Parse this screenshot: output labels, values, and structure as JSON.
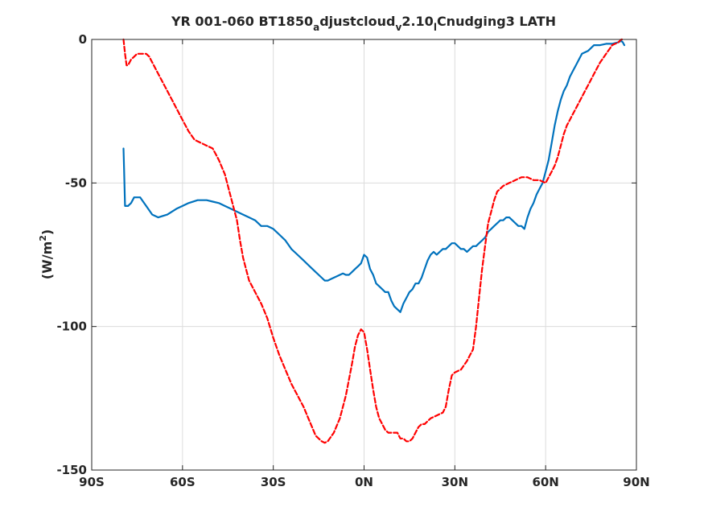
{
  "chart_data": {
    "type": "line",
    "title": {
      "main": "YR 001-060 BT1850",
      "sub1": "a",
      "mid1": "djustcloud",
      "sub2": "v",
      "mid2": "2.10",
      "sub3": "l",
      "tail": "Cnudging3 LATH"
    },
    "xlabel": "",
    "ylabel": {
      "prefix": "(W/m",
      "sup": "2",
      "suffix": ")"
    },
    "xlim": [
      -90,
      90
    ],
    "ylim": [
      -150,
      0
    ],
    "xticks": [
      -90,
      -60,
      -30,
      0,
      30,
      60,
      90
    ],
    "xticklabels": [
      "90S",
      "60S",
      "30S",
      "0N",
      "30N",
      "60N",
      "90N"
    ],
    "yticks": [
      -150,
      -100,
      -50,
      0
    ],
    "yticklabels": [
      "-150",
      "-100",
      "-50",
      "0"
    ],
    "grid": true,
    "series": [
      {
        "color": "#0072BD",
        "style": "solid",
        "x": [
          -79.5,
          -79.3,
          -79,
          -78,
          -77,
          -76,
          -75,
          -74,
          -72,
          -70,
          -68,
          -65,
          -62,
          -60,
          -58,
          -55,
          -52,
          -50,
          -48,
          -46,
          -44,
          -42,
          -40,
          -38,
          -36,
          -34,
          -32,
          -30,
          -28,
          -26,
          -24,
          -22,
          -20,
          -18,
          -16,
          -15,
          -14,
          -13,
          -12,
          -11,
          -10,
          -9,
          -8,
          -7,
          -6,
          -5,
          -4,
          -3,
          -2,
          -1,
          0,
          1,
          2,
          3,
          4,
          5,
          6,
          7,
          8,
          9,
          10,
          11,
          12,
          13,
          14,
          15,
          16,
          17,
          18,
          19,
          20,
          21,
          22,
          23,
          24,
          25,
          26,
          27,
          28,
          29,
          30,
          31,
          32,
          33,
          34,
          35,
          36,
          37,
          38,
          39,
          40,
          41,
          42,
          43,
          44,
          45,
          46,
          47,
          48,
          49,
          50,
          51,
          52,
          53,
          54,
          55,
          56,
          57,
          58,
          59,
          60,
          61,
          62,
          63,
          64,
          65,
          66,
          67,
          68,
          69,
          70,
          72,
          74,
          76,
          78,
          80,
          82,
          84,
          85,
          85.5,
          86
        ],
        "y": [
          -38,
          -45,
          -58,
          -58,
          -57,
          -55,
          -55,
          -55,
          -58,
          -61,
          -62,
          -61,
          -59,
          -58,
          -57,
          -56,
          -56,
          -56.5,
          -57,
          -58,
          -59,
          -60,
          -61,
          -62,
          -63,
          -65,
          -65,
          -66,
          -68,
          -70,
          -73,
          -75,
          -77,
          -79,
          -81,
          -82,
          -83,
          -84,
          -84,
          -83.5,
          -83,
          -82.5,
          -82,
          -81.5,
          -82,
          -82,
          -81,
          -80,
          -79,
          -78,
          -75,
          -76,
          -80,
          -82,
          -85,
          -86,
          -87,
          -88,
          -88,
          -91,
          -93,
          -94,
          -95,
          -92,
          -90,
          -88,
          -87,
          -85,
          -85,
          -83,
          -80,
          -77,
          -75,
          -74,
          -75,
          -74,
          -73,
          -73,
          -72,
          -71,
          -71,
          -72,
          -73,
          -73,
          -74,
          -73,
          -72,
          -72,
          -71,
          -70,
          -69,
          -67,
          -66,
          -65,
          -64,
          -63,
          -63,
          -62,
          -62,
          -63,
          -64,
          -65,
          -65,
          -66,
          -62,
          -59,
          -57,
          -54,
          -52,
          -50,
          -46,
          -42,
          -36,
          -30,
          -25,
          -21,
          -18,
          -16,
          -13,
          -11,
          -9,
          -5,
          -4,
          -2,
          -2,
          -1.5,
          -1.5,
          -1,
          -0.5,
          -1,
          -2
        ]
      },
      {
        "color": "#FF0000",
        "style": "dashed",
        "x": [
          -79.5,
          -79,
          -78.5,
          -78,
          -77,
          -76,
          -75,
          -74,
          -73,
          -72,
          -71,
          -70,
          -68,
          -66,
          -64,
          -62,
          -60,
          -58,
          -56,
          -54,
          -52,
          -50,
          -48,
          -46,
          -44,
          -42,
          -41,
          -40,
          -39,
          -38,
          -36,
          -34,
          -32,
          -30,
          -28,
          -26,
          -24,
          -22,
          -20,
          -18,
          -16,
          -15,
          -14,
          -13,
          -12,
          -10,
          -8,
          -6,
          -4,
          -3,
          -2,
          -1,
          0,
          1,
          2,
          3,
          4,
          5,
          6,
          7,
          8,
          9,
          10,
          11,
          12,
          13,
          14,
          15,
          16,
          17,
          18,
          19,
          20,
          22,
          24,
          26,
          27,
          28,
          29,
          30,
          32,
          34,
          35,
          36,
          37,
          38,
          39,
          40,
          41,
          42,
          43,
          44,
          45,
          46,
          48,
          50,
          52,
          54,
          56,
          58,
          60,
          61,
          62,
          63,
          64,
          65,
          66,
          67,
          68,
          69,
          70,
          72,
          74,
          76,
          78,
          80,
          82,
          84,
          85,
          86
        ],
        "y": [
          0,
          -5,
          -9,
          -9,
          -7,
          -6,
          -5,
          -5,
          -5,
          -5,
          -6,
          -8,
          -12,
          -16,
          -20,
          -24,
          -28,
          -32,
          -35,
          -36,
          -37,
          -38,
          -42,
          -47,
          -55,
          -63,
          -70,
          -76,
          -80,
          -84,
          -88,
          -92,
          -97,
          -104,
          -110,
          -115,
          -120,
          -124,
          -128,
          -133,
          -138,
          -139,
          -140,
          -140.5,
          -140,
          -137,
          -132,
          -124,
          -113,
          -107,
          -103,
          -101,
          -102,
          -108,
          -115,
          -122,
          -128,
          -132,
          -134,
          -136,
          -137,
          -137,
          -137,
          -137,
          -139,
          -139,
          -140,
          -140,
          -139,
          -137,
          -135,
          -134,
          -134,
          -132,
          -131,
          -130,
          -128,
          -122,
          -117,
          -116,
          -115,
          -112,
          -110,
          -108,
          -100,
          -90,
          -80,
          -72,
          -64,
          -60,
          -56,
          -53,
          -52,
          -51,
          -50,
          -49,
          -48,
          -48,
          -49,
          -49,
          -50,
          -48,
          -46,
          -44,
          -41,
          -37,
          -33,
          -30,
          -28,
          -26,
          -24,
          -20,
          -16,
          -12,
          -8,
          -5,
          -2,
          -1,
          0,
          0
        ]
      }
    ]
  }
}
